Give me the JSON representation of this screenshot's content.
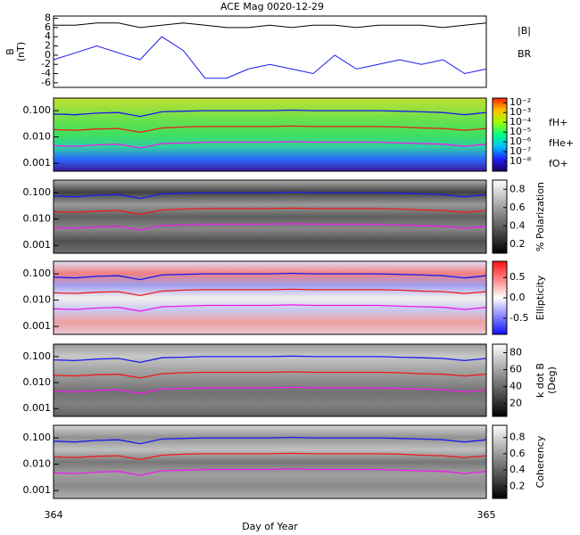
{
  "chart_data": [
    {
      "type": "line",
      "title": "ACE Mag 0020-12-29",
      "ylabel": [
        "B",
        "(nT)"
      ],
      "xlim": [
        364,
        365
      ],
      "ylim": [
        -7,
        8.5
      ],
      "yticks": [
        -6,
        -4,
        -2,
        0,
        2,
        4,
        6,
        8
      ],
      "x": [
        364,
        364.05,
        364.1,
        364.15,
        364.2,
        364.25,
        364.3,
        364.35,
        364.4,
        364.45,
        364.5,
        364.55,
        364.6,
        364.65,
        364.7,
        364.75,
        364.8,
        364.85,
        364.9,
        364.95,
        365
      ],
      "series": [
        {
          "name": "|B|",
          "color": "#000000",
          "values": [
            6.5,
            6.5,
            7,
            7,
            6,
            6.5,
            7,
            6.5,
            6,
            6,
            6.5,
            6,
            6.5,
            6.5,
            6,
            6.5,
            6.5,
            6.5,
            6,
            6.5,
            7
          ]
        },
        {
          "name": "BR",
          "color": "#1a1aee",
          "values": [
            -1,
            0.5,
            2,
            0.5,
            -1,
            4,
            1,
            -5,
            -5,
            -3,
            -2,
            -3,
            -4,
            0,
            -3,
            -2,
            -1,
            -2,
            -1,
            -4,
            -3
          ]
        }
      ]
    },
    {
      "type": "spectrogram",
      "xlim": [
        364,
        365
      ],
      "ylim": [
        0.0005,
        0.3
      ],
      "log_scale": true,
      "yticks": [
        {
          "value": 0.001,
          "label": "0.001"
        },
        {
          "value": 0.01,
          "label": "0.010"
        },
        {
          "value": 0.1,
          "label": "0.100"
        }
      ],
      "background": [
        "#3a1a9a",
        "#2a6aff",
        "#30d0a0",
        "#40e060",
        "#60e050",
        "#90e040",
        "#c0e030"
      ],
      "colorbar": {
        "log_scale": true,
        "clim": [
          1e-09,
          0.03
        ],
        "colors": [
          "#1a0060",
          "#2020ff",
          "#00c0ff",
          "#00ff80",
          "#a0ff00",
          "#ffc000",
          "#ff2000"
        ],
        "ticks": [
          {
            "value": 0.01,
            "label": "10⁻²"
          },
          {
            "value": 0.001,
            "label": "10⁻³"
          },
          {
            "value": 0.0001,
            "label": "10⁻⁴"
          },
          {
            "value": 1e-05,
            "label": "10⁻⁵"
          },
          {
            "value": 1e-06,
            "label": "10⁻⁶"
          },
          {
            "value": 1e-07,
            "label": "10⁻⁷"
          },
          {
            "value": 1e-08,
            "label": "10⁻⁸"
          }
        ]
      },
      "x": [
        364,
        364.05,
        364.1,
        364.15,
        364.2,
        364.25,
        364.3,
        364.35,
        364.4,
        364.45,
        364.5,
        364.55,
        364.6,
        364.65,
        364.7,
        364.75,
        364.8,
        364.85,
        364.9,
        364.95,
        365
      ],
      "series": [
        {
          "name": "fH+",
          "color": "#1a1aee",
          "values": [
            0.075,
            0.07,
            0.08,
            0.085,
            0.06,
            0.09,
            0.095,
            0.1,
            0.1,
            0.1,
            0.1,
            0.105,
            0.1,
            0.1,
            0.1,
            0.1,
            0.095,
            0.09,
            0.085,
            0.07,
            0.085
          ]
        },
        {
          "name": "fHe+",
          "color": "#ee1a1a",
          "values": [
            0.019,
            0.018,
            0.02,
            0.021,
            0.015,
            0.022,
            0.024,
            0.025,
            0.025,
            0.025,
            0.025,
            0.026,
            0.025,
            0.025,
            0.025,
            0.025,
            0.024,
            0.022,
            0.021,
            0.018,
            0.021
          ]
        },
        {
          "name": "fO+",
          "color": "#ee1aee",
          "values": [
            0.0047,
            0.0044,
            0.005,
            0.0053,
            0.0038,
            0.0056,
            0.0059,
            0.0063,
            0.0063,
            0.0063,
            0.0063,
            0.0066,
            0.0063,
            0.0063,
            0.0063,
            0.0063,
            0.0059,
            0.0056,
            0.0053,
            0.0044,
            0.0053
          ]
        }
      ]
    },
    {
      "type": "spectrogram",
      "xlim": [
        364,
        365
      ],
      "ylim": [
        0.0005,
        0.3
      ],
      "log_scale": true,
      "yticks": [
        {
          "value": 0.001,
          "label": "0.001"
        },
        {
          "value": 0.01,
          "label": "0.010"
        },
        {
          "value": 0.1,
          "label": "0.100"
        }
      ],
      "background": [
        "#707070",
        "#505050",
        "#888888",
        "#606060",
        "#9a9a9a",
        "#404040",
        "#b0b0b0"
      ],
      "colorbar": {
        "label": [
          "% Polarization"
        ],
        "clim": [
          0.1,
          0.9
        ],
        "colors": [
          "#000000",
          "#ffffff"
        ],
        "ticks": [
          0.2,
          0.4,
          0.6,
          0.8
        ]
      },
      "x": [
        364,
        364.05,
        364.1,
        364.15,
        364.2,
        364.25,
        364.3,
        364.35,
        364.4,
        364.45,
        364.5,
        364.55,
        364.6,
        364.65,
        364.7,
        364.75,
        364.8,
        364.85,
        364.9,
        364.95,
        365
      ],
      "series": [
        {
          "color": "#1a1aee",
          "values": [
            0.075,
            0.07,
            0.08,
            0.085,
            0.06,
            0.09,
            0.095,
            0.1,
            0.1,
            0.1,
            0.1,
            0.105,
            0.1,
            0.1,
            0.1,
            0.1,
            0.095,
            0.09,
            0.085,
            0.07,
            0.085
          ]
        },
        {
          "color": "#ee1a1a",
          "values": [
            0.019,
            0.018,
            0.02,
            0.021,
            0.015,
            0.022,
            0.024,
            0.025,
            0.025,
            0.025,
            0.025,
            0.026,
            0.025,
            0.025,
            0.025,
            0.025,
            0.024,
            0.022,
            0.021,
            0.018,
            0.021
          ]
        },
        {
          "color": "#ee1aee",
          "values": [
            0.0047,
            0.0044,
            0.005,
            0.0053,
            0.0038,
            0.0056,
            0.0059,
            0.0063,
            0.0063,
            0.0063,
            0.0063,
            0.0066,
            0.0063,
            0.0063,
            0.0063,
            0.0063,
            0.0059,
            0.0056,
            0.0053,
            0.0044,
            0.0053
          ]
        }
      ]
    },
    {
      "type": "spectrogram",
      "xlim": [
        364,
        365
      ],
      "ylim": [
        0.0005,
        0.3
      ],
      "log_scale": true,
      "yticks": [
        {
          "value": 0.001,
          "label": "0.001"
        },
        {
          "value": 0.01,
          "label": "0.010"
        },
        {
          "value": 0.1,
          "label": "0.100"
        }
      ],
      "background": [
        "#e8c8d8",
        "#f0a0a0",
        "#c8c8f0",
        "#f4f0f0",
        "#a0a0f0",
        "#f08080",
        "#e0e0f8"
      ],
      "colorbar": {
        "label": [
          "Ellipticity"
        ],
        "clim": [
          -0.9,
          0.9
        ],
        "colors": [
          "#1010ff",
          "#ffffff",
          "#ff1010"
        ],
        "ticks": [
          0.5,
          {
            "value": 0,
            "label": "0.0"
          },
          -0.5
        ]
      },
      "x": [
        364,
        364.05,
        364.1,
        364.15,
        364.2,
        364.25,
        364.3,
        364.35,
        364.4,
        364.45,
        364.5,
        364.55,
        364.6,
        364.65,
        364.7,
        364.75,
        364.8,
        364.85,
        364.9,
        364.95,
        365
      ],
      "series": [
        {
          "color": "#1a1aee",
          "values": [
            0.075,
            0.07,
            0.08,
            0.085,
            0.06,
            0.09,
            0.095,
            0.1,
            0.1,
            0.1,
            0.1,
            0.105,
            0.1,
            0.1,
            0.1,
            0.1,
            0.095,
            0.09,
            0.085,
            0.07,
            0.085
          ]
        },
        {
          "color": "#ee1a1a",
          "values": [
            0.019,
            0.018,
            0.02,
            0.021,
            0.015,
            0.022,
            0.024,
            0.025,
            0.025,
            0.025,
            0.025,
            0.026,
            0.025,
            0.025,
            0.025,
            0.025,
            0.024,
            0.022,
            0.021,
            0.018,
            0.021
          ]
        },
        {
          "color": "#ee1aee",
          "values": [
            0.0047,
            0.0044,
            0.005,
            0.0053,
            0.0038,
            0.0056,
            0.0059,
            0.0063,
            0.0063,
            0.0063,
            0.0063,
            0.0066,
            0.0063,
            0.0063,
            0.0063,
            0.0063,
            0.0059,
            0.0056,
            0.0053,
            0.0044,
            0.0053
          ]
        }
      ]
    },
    {
      "type": "spectrogram",
      "xlim": [
        364,
        365
      ],
      "ylim": [
        0.0005,
        0.3
      ],
      "log_scale": true,
      "yticks": [
        {
          "value": 0.001,
          "label": "0.001"
        },
        {
          "value": 0.01,
          "label": "0.010"
        },
        {
          "value": 0.1,
          "label": "0.100"
        }
      ],
      "background": [
        "#606060",
        "#808080",
        "#707070",
        "#909090",
        "#a8a8a8",
        "#c8c8c8",
        "#989898"
      ],
      "colorbar": {
        "label": [
          "k dot B",
          "(Deg)"
        ],
        "clim": [
          5,
          90
        ],
        "colors": [
          "#000000",
          "#ffffff"
        ],
        "ticks": [
          20,
          40,
          60,
          80
        ]
      },
      "x": [
        364,
        364.05,
        364.1,
        364.15,
        364.2,
        364.25,
        364.3,
        364.35,
        364.4,
        364.45,
        364.5,
        364.55,
        364.6,
        364.65,
        364.7,
        364.75,
        364.8,
        364.85,
        364.9,
        364.95,
        365
      ],
      "series": [
        {
          "color": "#1a1aee",
          "values": [
            0.075,
            0.07,
            0.08,
            0.085,
            0.06,
            0.09,
            0.095,
            0.1,
            0.1,
            0.1,
            0.1,
            0.105,
            0.1,
            0.1,
            0.1,
            0.1,
            0.095,
            0.09,
            0.085,
            0.07,
            0.085
          ]
        },
        {
          "color": "#ee1a1a",
          "values": [
            0.019,
            0.018,
            0.02,
            0.021,
            0.015,
            0.022,
            0.024,
            0.025,
            0.025,
            0.025,
            0.025,
            0.026,
            0.025,
            0.025,
            0.025,
            0.025,
            0.024,
            0.022,
            0.021,
            0.018,
            0.021
          ]
        },
        {
          "color": "#ee1aee",
          "values": [
            0.0047,
            0.0044,
            0.005,
            0.0053,
            0.0038,
            0.0056,
            0.0059,
            0.0063,
            0.0063,
            0.0063,
            0.0063,
            0.0066,
            0.0063,
            0.0063,
            0.0063,
            0.0063,
            0.0059,
            0.0056,
            0.0053,
            0.0044,
            0.0053
          ]
        }
      ]
    },
    {
      "type": "spectrogram",
      "xlim": [
        364,
        365
      ],
      "ylim": [
        0.0005,
        0.3
      ],
      "log_scale": true,
      "yticks": [
        {
          "value": 0.001,
          "label": "0.001"
        },
        {
          "value": 0.01,
          "label": "0.010"
        },
        {
          "value": 0.1,
          "label": "0.100"
        }
      ],
      "background": [
        "#b0b0b0",
        "#8a8a8a",
        "#a0a0a0",
        "#787878",
        "#c0c0c0",
        "#909090",
        "#d8d8d8"
      ],
      "colorbar": {
        "label": [
          "Coherency"
        ],
        "clim": [
          0.05,
          0.95
        ],
        "colors": [
          "#000000",
          "#ffffff"
        ],
        "ticks": [
          0.2,
          0.4,
          0.6,
          0.8
        ]
      },
      "xticks": [
        364,
        365
      ],
      "xlabel": "Day of Year",
      "x": [
        364,
        364.05,
        364.1,
        364.15,
        364.2,
        364.25,
        364.3,
        364.35,
        364.4,
        364.45,
        364.5,
        364.55,
        364.6,
        364.65,
        364.7,
        364.75,
        364.8,
        364.85,
        364.9,
        364.95,
        365
      ],
      "series": [
        {
          "color": "#1a1aee",
          "values": [
            0.075,
            0.07,
            0.08,
            0.085,
            0.06,
            0.09,
            0.095,
            0.1,
            0.1,
            0.1,
            0.1,
            0.105,
            0.1,
            0.1,
            0.1,
            0.1,
            0.095,
            0.09,
            0.085,
            0.07,
            0.085
          ]
        },
        {
          "color": "#ee1a1a",
          "values": [
            0.019,
            0.018,
            0.02,
            0.021,
            0.015,
            0.022,
            0.024,
            0.025,
            0.025,
            0.025,
            0.025,
            0.026,
            0.025,
            0.025,
            0.025,
            0.025,
            0.024,
            0.022,
            0.021,
            0.018,
            0.021
          ]
        },
        {
          "color": "#ee1aee",
          "values": [
            0.0047,
            0.0044,
            0.005,
            0.0053,
            0.0038,
            0.0056,
            0.0059,
            0.0063,
            0.0063,
            0.0063,
            0.0063,
            0.0066,
            0.0063,
            0.0063,
            0.0063,
            0.0063,
            0.0059,
            0.0056,
            0.0053,
            0.0044,
            0.0053
          ]
        }
      ]
    }
  ]
}
